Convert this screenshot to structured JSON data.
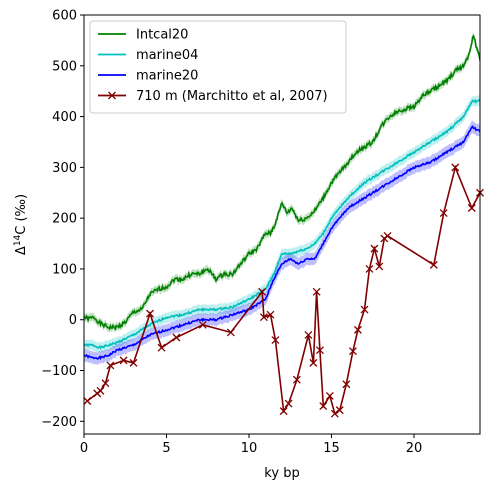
{
  "chart_data": {
    "type": "line",
    "xlabel": "ky bp",
    "ylabel_main": "Δ",
    "ylabel_sup": "14",
    "ylabel_rest": "C (‰)",
    "xlim": [
      0,
      24
    ],
    "ylim": [
      -225,
      600
    ],
    "xticks": [
      0,
      5,
      10,
      15,
      20
    ],
    "yticks": [
      -200,
      -100,
      0,
      100,
      200,
      300,
      400,
      500,
      600
    ],
    "legend_position": "upper-left",
    "series": [
      {
        "name": "Intcal20",
        "color": "#008000",
        "band": 8,
        "noise": 8,
        "x": [
          0,
          0.3,
          0.6,
          1,
          1.5,
          2,
          2.5,
          3,
          3.5,
          4,
          4.5,
          5,
          5.5,
          6,
          6.5,
          7,
          7.5,
          8,
          8.5,
          9,
          9.5,
          10,
          10.5,
          11,
          11.3,
          11.6,
          12,
          12.3,
          12.6,
          13,
          13.5,
          14,
          14.5,
          15,
          15.5,
          16,
          16.5,
          17,
          17.5,
          18,
          18.5,
          19,
          19.5,
          20,
          20.5,
          21,
          21.5,
          22,
          22.5,
          23,
          23.3,
          23.6,
          24
        ],
        "y": [
          5,
          2,
          5,
          -8,
          -15,
          -15,
          -5,
          15,
          20,
          50,
          60,
          65,
          80,
          80,
          90,
          90,
          100,
          80,
          90,
          90,
          110,
          130,
          140,
          170,
          170,
          190,
          230,
          210,
          220,
          195,
          200,
          215,
          240,
          270,
          290,
          310,
          330,
          340,
          350,
          380,
          400,
          410,
          415,
          420,
          440,
          450,
          460,
          470,
          490,
          500,
          520,
          560,
          510
        ]
      },
      {
        "name": "marine04",
        "color": "#00BFBF",
        "band": 10,
        "noise": 4,
        "x": [
          0,
          0.5,
          1,
          1.5,
          2,
          3,
          4,
          5,
          6,
          7,
          8,
          9,
          10,
          11,
          11.5,
          12,
          12.5,
          13,
          13.5,
          14,
          14.5,
          15,
          16,
          17,
          18,
          19,
          20,
          21,
          22,
          23,
          23.5,
          24
        ],
        "y": [
          -50,
          -50,
          -55,
          -50,
          -45,
          -30,
          -10,
          5,
          10,
          20,
          20,
          25,
          40,
          60,
          90,
          130,
          130,
          135,
          140,
          150,
          170,
          200,
          240,
          270,
          290,
          310,
          330,
          350,
          370,
          400,
          430,
          430
        ]
      },
      {
        "name": "marine20",
        "color": "#0000FF",
        "band": 12,
        "noise": 4,
        "x": [
          0,
          0.5,
          1,
          1.5,
          2,
          3,
          4,
          5,
          6,
          7,
          8,
          9,
          10,
          11,
          11.5,
          12,
          12.5,
          13,
          13.5,
          14,
          14.5,
          15,
          16,
          17,
          18,
          19,
          20,
          21,
          22,
          23,
          23.5,
          24
        ],
        "y": [
          -70,
          -75,
          -75,
          -70,
          -60,
          -50,
          -30,
          -20,
          -10,
          0,
          0,
          10,
          20,
          40,
          80,
          110,
          120,
          110,
          120,
          120,
          150,
          180,
          220,
          240,
          260,
          280,
          300,
          310,
          330,
          350,
          380,
          370
        ]
      },
      {
        "name": "710 m (Marchitto et al, 2007)",
        "color": "#800000",
        "marker": "x",
        "x": [
          0.2,
          0.8,
          1.0,
          1.3,
          1.6,
          2.4,
          3.0,
          4.0,
          4.7,
          5.6,
          7.2,
          8.9,
          10.8,
          10.9,
          11.3,
          11.6,
          12.1,
          12.4,
          12.9,
          13.6,
          13.9,
          14.1,
          14.3,
          14.5,
          14.9,
          15.2,
          15.5,
          15.9,
          16.3,
          16.6,
          17.0,
          17.3,
          17.6,
          17.9,
          18.2,
          18.4,
          21.2,
          21.8,
          22.5,
          23.5,
          24.0
        ],
        "y": [
          -160,
          -145,
          -140,
          -125,
          -90,
          -80,
          -85,
          12,
          -55,
          -35,
          -10,
          -25,
          55,
          5,
          10,
          -40,
          -180,
          -165,
          -118,
          -30,
          -85,
          55,
          -60,
          -170,
          -150,
          -185,
          -178,
          -127,
          -62,
          -20,
          20,
          100,
          140,
          105,
          160,
          165,
          108,
          210,
          300,
          220,
          250
        ]
      }
    ]
  }
}
